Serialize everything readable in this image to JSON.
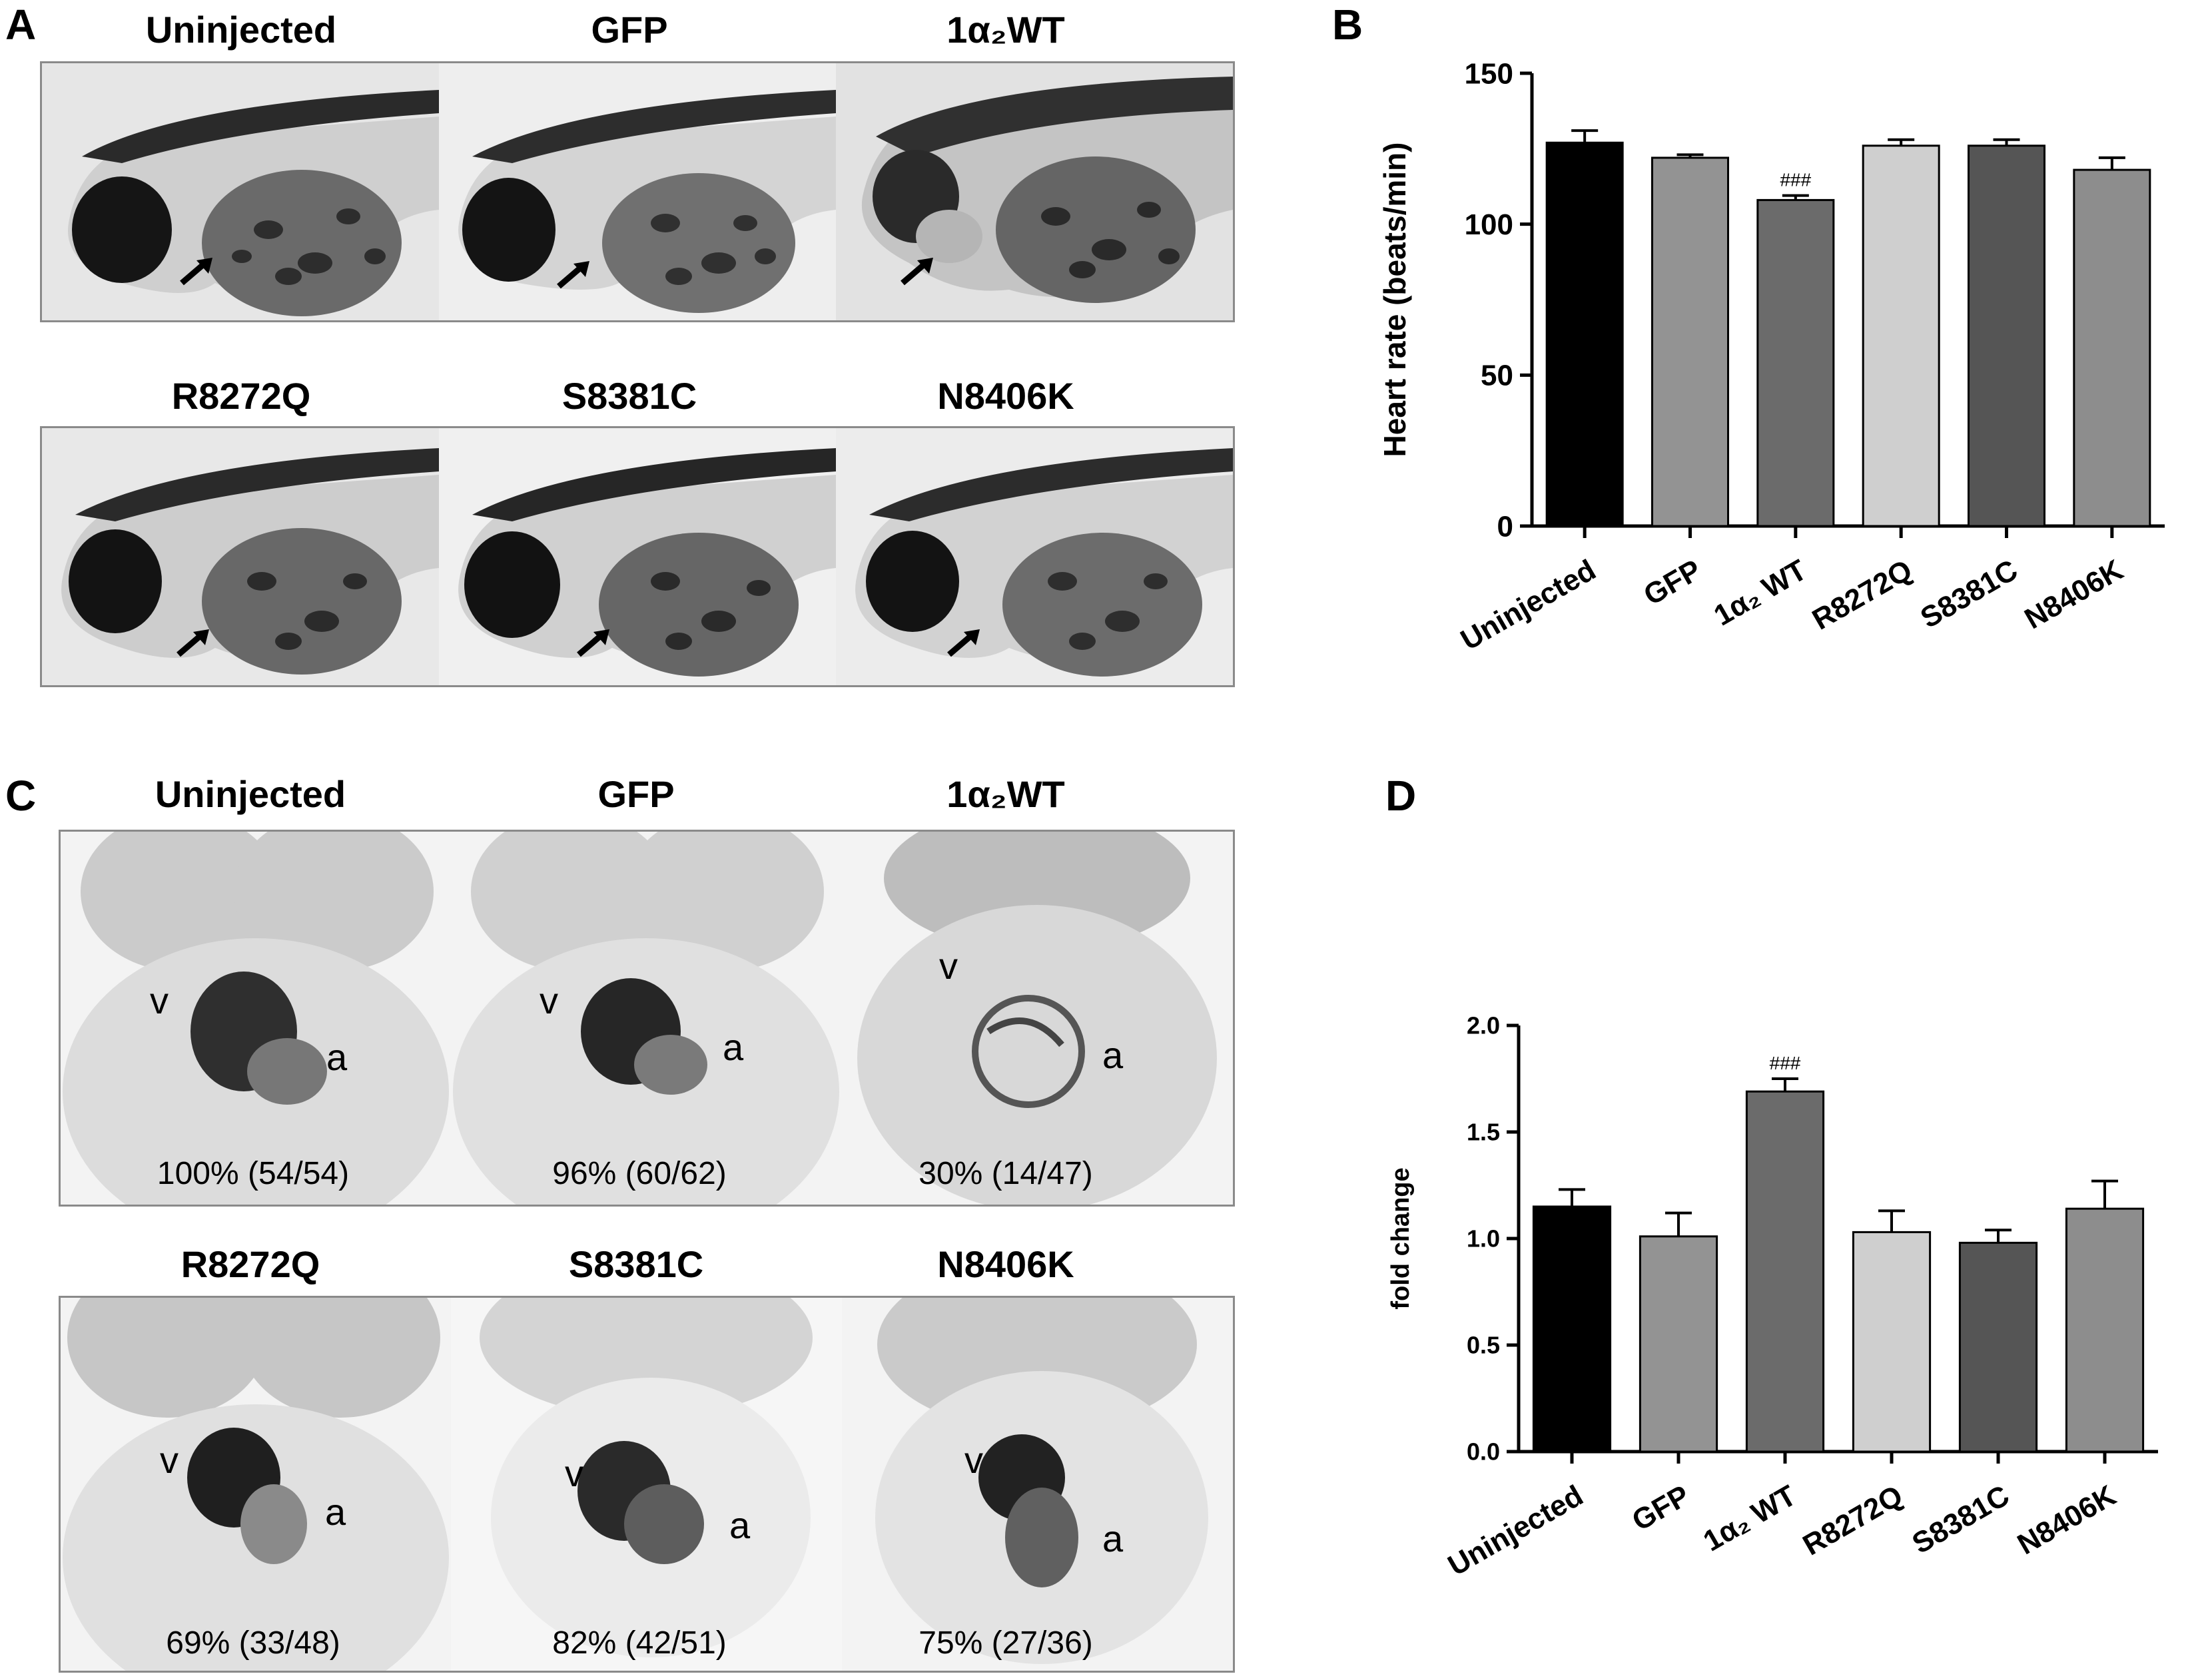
{
  "panels": {
    "A": "A",
    "B": "B",
    "C": "C",
    "D": "D"
  },
  "panelA": {
    "row1": [
      "Uninjected",
      "GFP",
      "1α₂WT"
    ],
    "row2": [
      "R8272Q",
      "S8381C",
      "N8406K"
    ]
  },
  "panelC": {
    "row1": [
      "Uninjected",
      "GFP",
      "1α₂WT"
    ],
    "row2": [
      "R8272Q",
      "S8381C",
      "N8406K"
    ],
    "pct_row1": [
      "100% (54/54)",
      "96% (60/62)",
      "30% (14/47)"
    ],
    "pct_row2": [
      "69% (33/48)",
      "82% (42/51)",
      "75% (27/36)"
    ],
    "v_label": "v",
    "a_label": "a"
  },
  "chart_data": [
    {
      "panel": "B",
      "type": "bar",
      "categories": [
        "Uninjected",
        "GFP",
        "1α₂ WT",
        "R8272Q",
        "S8381C",
        "N8406K"
      ],
      "values": [
        127,
        122,
        108,
        126,
        126,
        118
      ],
      "errors": [
        4,
        1,
        1.5,
        2,
        2,
        4
      ],
      "colors": [
        "#000000",
        "#939393",
        "#6b6b6b",
        "#cfcfcf",
        "#555555",
        "#8d8d8d"
      ],
      "annotations": [
        {
          "category": "1α₂ WT",
          "text": "###"
        }
      ],
      "ylabel": "Heart rate (beats/min)",
      "ylim": [
        0,
        150
      ],
      "yticks": [
        0,
        50,
        100,
        150
      ]
    },
    {
      "panel": "D",
      "type": "bar",
      "categories": [
        "Uninjected",
        "GFP",
        "1α₂ WT",
        "R8272Q",
        "S8381C",
        "N8406K"
      ],
      "values": [
        1.15,
        1.01,
        1.69,
        1.03,
        0.98,
        1.14
      ],
      "errors": [
        0.08,
        0.11,
        0.06,
        0.1,
        0.06,
        0.13
      ],
      "colors": [
        "#000000",
        "#939393",
        "#6b6b6b",
        "#cfcfcf",
        "#555555",
        "#8d8d8d"
      ],
      "annotations": [
        {
          "category": "1α₂ WT",
          "text": "###"
        }
      ],
      "ylabel": "fold change",
      "ylim": [
        0,
        2.0
      ],
      "yticks": [
        "0.0",
        "0.5",
        "1.0",
        "1.5",
        "2.0"
      ]
    }
  ]
}
